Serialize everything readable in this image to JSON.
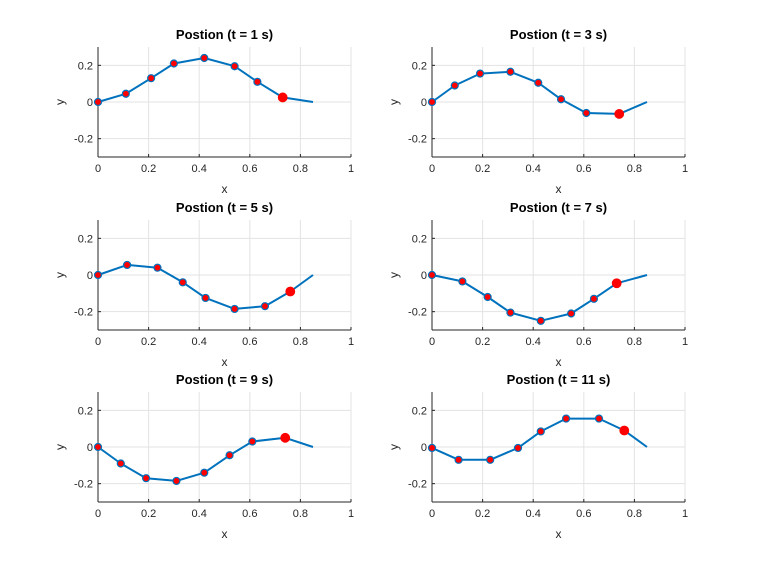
{
  "chart_data": [
    {
      "type": "line",
      "title": "Postion (t = 1 s)",
      "xlabel": "x",
      "ylabel": "y",
      "xlim": [
        0,
        1
      ],
      "ylim": [
        -0.3,
        0.3
      ],
      "xticks": [
        0,
        0.2,
        0.4,
        0.6,
        0.8,
        1
      ],
      "xtick_labels": [
        "0",
        "0.2",
        "0.4",
        "0.6",
        "0.8",
        "1"
      ],
      "yticks": [
        -0.2,
        0,
        0.2
      ],
      "ytick_labels": [
        "-0.2",
        "0",
        "0.2"
      ],
      "grid": true,
      "line_color": "#0072BD",
      "marker_color": "#FF0000",
      "line": {
        "x": [
          0,
          0.11,
          0.21,
          0.3,
          0.42,
          0.54,
          0.63,
          0.73,
          0.85
        ],
        "y": [
          0,
          0.045,
          0.13,
          0.21,
          0.24,
          0.195,
          0.11,
          0.025,
          0
        ]
      },
      "markers": {
        "x": [
          0,
          0.11,
          0.21,
          0.3,
          0.42,
          0.54,
          0.63,
          0.73
        ],
        "y": [
          0,
          0.045,
          0.13,
          0.21,
          0.24,
          0.195,
          0.11,
          0.025
        ]
      }
    },
    {
      "type": "line",
      "title": "Postion (t = 3 s)",
      "xlabel": "x",
      "ylabel": "y",
      "xlim": [
        0,
        1
      ],
      "ylim": [
        -0.3,
        0.3
      ],
      "xticks": [
        0,
        0.2,
        0.4,
        0.6,
        0.8,
        1
      ],
      "xtick_labels": [
        "0",
        "0.2",
        "0.4",
        "0.6",
        "0.8",
        "1"
      ],
      "yticks": [
        -0.2,
        0,
        0.2
      ],
      "ytick_labels": [
        "-0.2",
        "0",
        "0.2"
      ],
      "grid": true,
      "line_color": "#0072BD",
      "marker_color": "#FF0000",
      "line": {
        "x": [
          0,
          0.09,
          0.19,
          0.31,
          0.42,
          0.51,
          0.61,
          0.74,
          0.85
        ],
        "y": [
          0,
          0.09,
          0.155,
          0.165,
          0.105,
          0.015,
          -0.06,
          -0.065,
          0
        ]
      },
      "markers": {
        "x": [
          0,
          0.09,
          0.19,
          0.31,
          0.42,
          0.51,
          0.61,
          0.74
        ],
        "y": [
          0,
          0.09,
          0.155,
          0.165,
          0.105,
          0.015,
          -0.06,
          -0.065
        ]
      }
    },
    {
      "type": "line",
      "title": "Postion (t = 5 s)",
      "xlabel": "x",
      "ylabel": "y",
      "xlim": [
        0,
        1
      ],
      "ylim": [
        -0.3,
        0.3
      ],
      "xticks": [
        0,
        0.2,
        0.4,
        0.6,
        0.8,
        1
      ],
      "xtick_labels": [
        "0",
        "0.2",
        "0.4",
        "0.6",
        "0.8",
        "1"
      ],
      "yticks": [
        -0.2,
        0,
        0.2
      ],
      "ytick_labels": [
        "-0.2",
        "0",
        "0.2"
      ],
      "grid": true,
      "line_color": "#0072BD",
      "marker_color": "#FF0000",
      "line": {
        "x": [
          0,
          0.115,
          0.235,
          0.335,
          0.425,
          0.54,
          0.66,
          0.76,
          0.85
        ],
        "y": [
          0,
          0.055,
          0.04,
          -0.04,
          -0.125,
          -0.185,
          -0.17,
          -0.09,
          0
        ]
      },
      "markers": {
        "x": [
          0,
          0.115,
          0.235,
          0.335,
          0.425,
          0.54,
          0.66,
          0.76
        ],
        "y": [
          0,
          0.055,
          0.04,
          -0.04,
          -0.125,
          -0.185,
          -0.17,
          -0.09
        ]
      }
    },
    {
      "type": "line",
      "title": "Postion (t = 7 s)",
      "xlabel": "x",
      "ylabel": "y",
      "xlim": [
        0,
        1
      ],
      "ylim": [
        -0.3,
        0.3
      ],
      "xticks": [
        0,
        0.2,
        0.4,
        0.6,
        0.8,
        1
      ],
      "xtick_labels": [
        "0",
        "0.2",
        "0.4",
        "0.6",
        "0.8",
        "1"
      ],
      "yticks": [
        -0.2,
        0,
        0.2
      ],
      "ytick_labels": [
        "-0.2",
        "0",
        "0.2"
      ],
      "grid": true,
      "line_color": "#0072BD",
      "marker_color": "#FF0000",
      "line": {
        "x": [
          0,
          0.12,
          0.22,
          0.31,
          0.43,
          0.55,
          0.64,
          0.73,
          0.85
        ],
        "y": [
          0,
          -0.035,
          -0.12,
          -0.205,
          -0.25,
          -0.21,
          -0.13,
          -0.045,
          0
        ]
      },
      "markers": {
        "x": [
          0,
          0.12,
          0.22,
          0.31,
          0.43,
          0.55,
          0.64,
          0.73
        ],
        "y": [
          0,
          -0.035,
          -0.12,
          -0.205,
          -0.25,
          -0.21,
          -0.13,
          -0.045
        ]
      }
    },
    {
      "type": "line",
      "title": "Postion (t = 9 s)",
      "xlabel": "x",
      "ylabel": "y",
      "xlim": [
        0,
        1
      ],
      "ylim": [
        -0.3,
        0.3
      ],
      "xticks": [
        0,
        0.2,
        0.4,
        0.6,
        0.8,
        1
      ],
      "xtick_labels": [
        "0",
        "0.2",
        "0.4",
        "0.6",
        "0.8",
        "1"
      ],
      "yticks": [
        -0.2,
        0,
        0.2
      ],
      "ytick_labels": [
        "-0.2",
        "0",
        "0.2"
      ],
      "grid": true,
      "line_color": "#0072BD",
      "marker_color": "#FF0000",
      "line": {
        "x": [
          0,
          0.09,
          0.19,
          0.31,
          0.42,
          0.52,
          0.61,
          0.74,
          0.85
        ],
        "y": [
          0,
          -0.09,
          -0.17,
          -0.185,
          -0.14,
          -0.045,
          0.03,
          0.05,
          0
        ]
      },
      "markers": {
        "x": [
          0,
          0.09,
          0.19,
          0.31,
          0.42,
          0.52,
          0.61,
          0.74
        ],
        "y": [
          0,
          -0.09,
          -0.17,
          -0.185,
          -0.14,
          -0.045,
          0.03,
          0.05
        ]
      }
    },
    {
      "type": "line",
      "title": "Postion (t = 11 s)",
      "xlabel": "x",
      "ylabel": "y",
      "xlim": [
        0,
        1
      ],
      "ylim": [
        -0.3,
        0.3
      ],
      "xticks": [
        0,
        0.2,
        0.4,
        0.6,
        0.8,
        1
      ],
      "xtick_labels": [
        "0",
        "0.2",
        "0.4",
        "0.6",
        "0.8",
        "1"
      ],
      "yticks": [
        -0.2,
        0,
        0.2
      ],
      "ytick_labels": [
        "-0.2",
        "0",
        "0.2"
      ],
      "grid": true,
      "line_color": "#0072BD",
      "marker_color": "#FF0000",
      "line": {
        "x": [
          0,
          0.105,
          0.23,
          0.34,
          0.43,
          0.53,
          0.66,
          0.76,
          0.85
        ],
        "y": [
          -0.005,
          -0.07,
          -0.07,
          -0.005,
          0.085,
          0.155,
          0.155,
          0.09,
          0
        ]
      },
      "markers": {
        "x": [
          0,
          0.105,
          0.23,
          0.34,
          0.43,
          0.53,
          0.66,
          0.76
        ],
        "y": [
          -0.005,
          -0.07,
          -0.07,
          -0.005,
          0.085,
          0.155,
          0.155,
          0.09
        ]
      }
    }
  ]
}
